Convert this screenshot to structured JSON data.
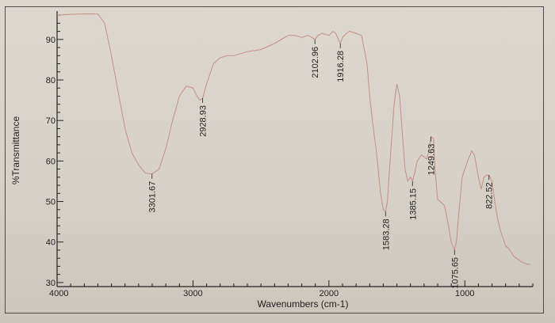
{
  "chart_data": {
    "type": "line",
    "xlabel": "Wavenumbers (cm-1)",
    "ylabel": "%Transmittance",
    "xlim": [
      4000,
      500
    ],
    "ylim": [
      29,
      97
    ],
    "x_ticks": [
      4000,
      3000,
      2000,
      1000
    ],
    "y_ticks": [
      30,
      40,
      50,
      60,
      70,
      80,
      90
    ],
    "grid": false,
    "colors": {
      "line": "#c98c82",
      "axis": "#222222"
    },
    "series": [
      {
        "x": [
          4000,
          3900,
          3800,
          3750,
          3700,
          3650,
          3600,
          3550,
          3500,
          3450,
          3400,
          3350,
          3301.67,
          3250,
          3200,
          3150,
          3100,
          3050,
          3000,
          2970,
          2950,
          2928.93,
          2900,
          2850,
          2800,
          2750,
          2700,
          2600,
          2500,
          2400,
          2350,
          2300,
          2250,
          2200,
          2150,
          2102.96,
          2080,
          2050,
          2000,
          1970,
          1950,
          1930,
          1916.28,
          1900,
          1870,
          1850,
          1800,
          1760,
          1720,
          1700,
          1680,
          1650,
          1620,
          1600,
          1583.28,
          1570,
          1550,
          1520,
          1500,
          1480,
          1460,
          1440,
          1420,
          1400,
          1385.15,
          1370,
          1350,
          1320,
          1300,
          1280,
          1260,
          1249.63,
          1230,
          1220,
          1200,
          1180,
          1150,
          1120,
          1100,
          1075.65,
          1060,
          1050,
          1020,
          1000,
          980,
          960,
          950,
          930,
          900,
          880,
          860,
          840,
          822.52,
          800,
          780,
          760,
          740,
          720,
          700,
          680,
          660,
          640,
          620,
          600,
          580,
          560,
          540,
          520
        ],
        "y": [
          96,
          96.2,
          96.3,
          96.3,
          96.3,
          94,
          86,
          77,
          68,
          62,
          59,
          57,
          56.8,
          58,
          63,
          70,
          76,
          78.5,
          78,
          76,
          75,
          75.5,
          79,
          84,
          85.5,
          86,
          86,
          87,
          87.5,
          89,
          90,
          91,
          91,
          90.5,
          91,
          90,
          91,
          91.5,
          91,
          92,
          91.5,
          90,
          89,
          90.5,
          91.5,
          92,
          91.5,
          91,
          84,
          76,
          70,
          62,
          52,
          48,
          47.5,
          50,
          60,
          74,
          79,
          76,
          67,
          58,
          55,
          56,
          55,
          57,
          60,
          61.5,
          61,
          60.5,
          63,
          66,
          65.5,
          58,
          50.5,
          50,
          49,
          44,
          40,
          38,
          40.5,
          45,
          56,
          58,
          60,
          61.5,
          62.5,
          61.5,
          56,
          53,
          56,
          56.5,
          56.5,
          55,
          50,
          46,
          43,
          41,
          39,
          38.5,
          37.5,
          36.5,
          36,
          35.5,
          35,
          34.8,
          34.5,
          34.5
        ]
      }
    ],
    "peak_labels": [
      {
        "x": 3301.67,
        "text": "3301.67"
      },
      {
        "x": 2928.93,
        "text": "2928.93"
      },
      {
        "x": 2102.96,
        "text": "2102.96"
      },
      {
        "x": 1916.28,
        "text": "1916.28"
      },
      {
        "x": 1583.28,
        "text": "1583.28"
      },
      {
        "x": 1385.15,
        "text": "1385.15"
      },
      {
        "x": 1249.63,
        "text": "1249.63"
      },
      {
        "x": 1075.65,
        "text": "1075.65"
      },
      {
        "x": 822.52,
        "text": "822.52"
      }
    ]
  }
}
